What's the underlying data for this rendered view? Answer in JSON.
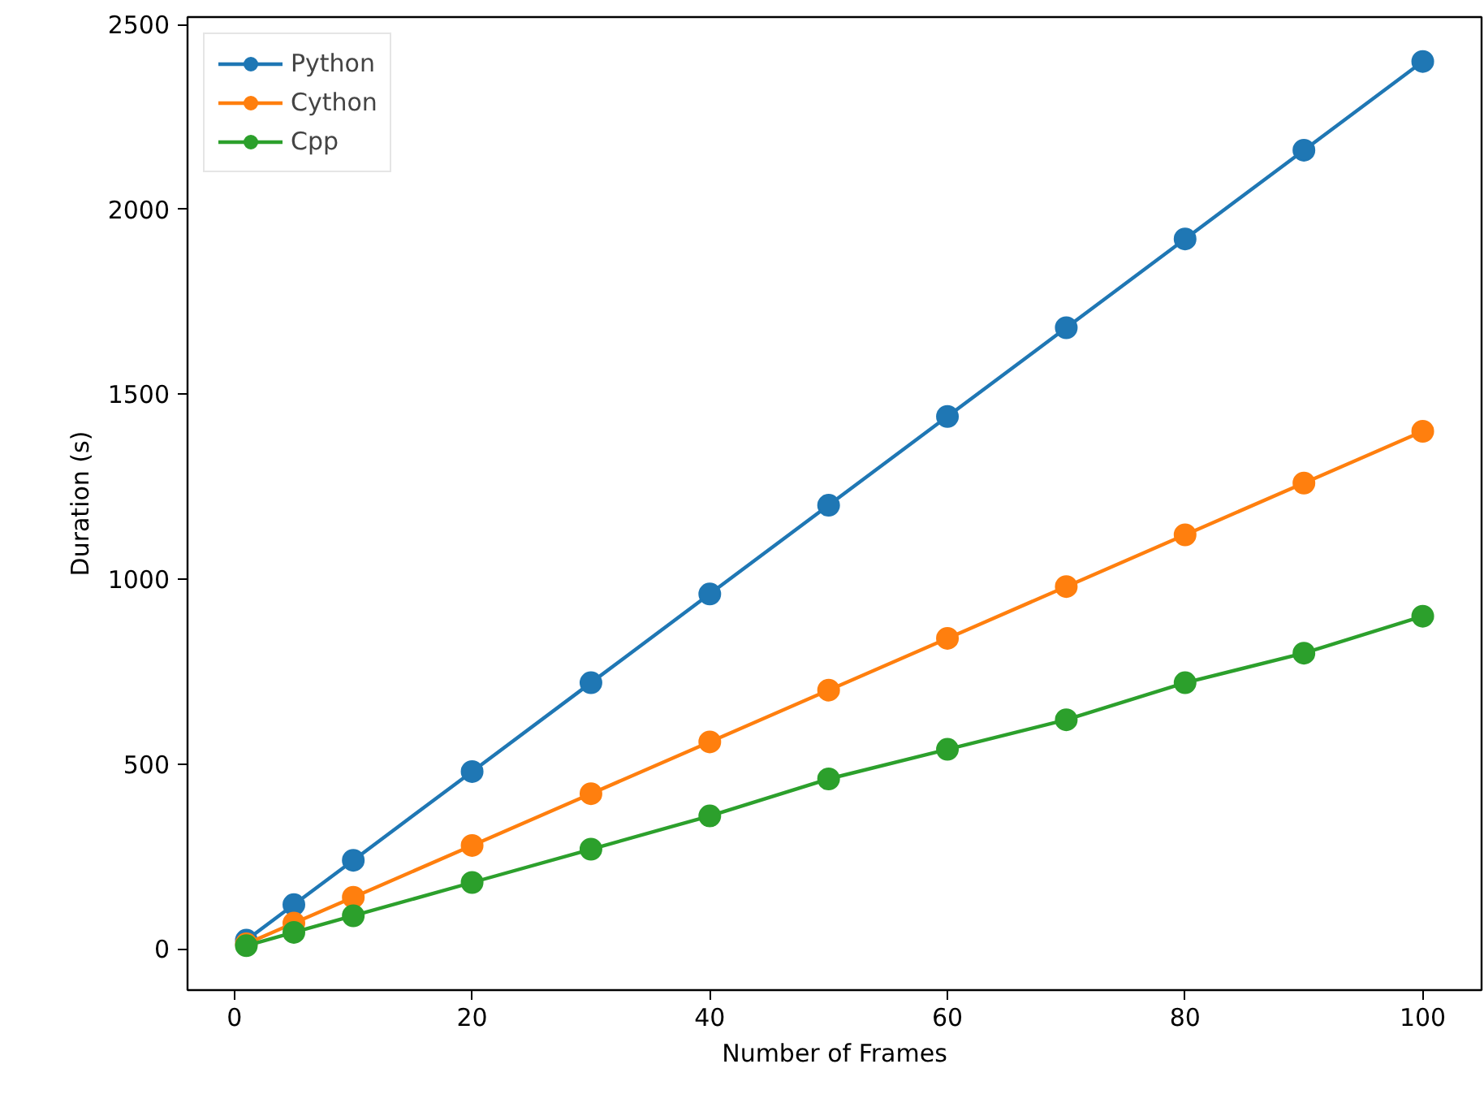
{
  "chart_data": {
    "type": "line",
    "xlabel": "Number of Frames",
    "ylabel": "Duration (s)",
    "x": [
      1,
      5,
      10,
      20,
      30,
      40,
      50,
      60,
      70,
      80,
      90,
      100
    ],
    "series": [
      {
        "name": "Python",
        "color": "#1f77b4",
        "values": [
          24,
          120,
          240,
          480,
          720,
          960,
          1200,
          1440,
          1680,
          1920,
          2160,
          2400
        ]
      },
      {
        "name": "Cython",
        "color": "#ff7f0e",
        "values": [
          14,
          70,
          140,
          280,
          420,
          560,
          700,
          840,
          980,
          1120,
          1260,
          1400
        ]
      },
      {
        "name": "Cpp",
        "color": "#2ca02c",
        "values": [
          9,
          45,
          90,
          180,
          270,
          360,
          460,
          540,
          620,
          720,
          800,
          900
        ]
      }
    ],
    "xlim": [
      -3.95,
      104.95
    ],
    "ylim": [
      -111,
      2520
    ],
    "xticks": [
      0,
      20,
      40,
      60,
      80,
      100
    ],
    "yticks": [
      0,
      500,
      1000,
      1500,
      2000,
      2500
    ],
    "grid": false,
    "legend": "top left",
    "marker": "circle",
    "line_style": "solid"
  }
}
